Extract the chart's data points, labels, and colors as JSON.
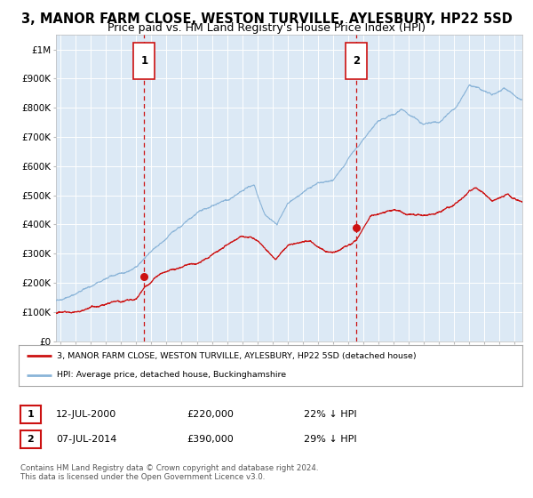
{
  "title": "3, MANOR FARM CLOSE, WESTON TURVILLE, AYLESBURY, HP22 5SD",
  "subtitle": "Price paid vs. HM Land Registry's House Price Index (HPI)",
  "title_fontsize": 10.5,
  "subtitle_fontsize": 9,
  "background_color": "#ffffff",
  "plot_bg_color": "#dce9f5",
  "hpi_color": "#8ab4d8",
  "price_color": "#cc1111",
  "marker_color": "#cc1111",
  "vline_color": "#cc1111",
  "grid_color": "#ffffff",
  "annotation_box_color": "#cc1111",
  "ylim": [
    0,
    1050000
  ],
  "xlim_start": 1994.7,
  "xlim_end": 2025.5,
  "yticks": [
    0,
    100000,
    200000,
    300000,
    400000,
    500000,
    600000,
    700000,
    800000,
    900000,
    1000000
  ],
  "ytick_labels": [
    "£0",
    "£100K",
    "£200K",
    "£300K",
    "£400K",
    "£500K",
    "£600K",
    "£700K",
    "£800K",
    "£900K",
    "£1M"
  ],
  "xtick_years": [
    1995,
    1996,
    1997,
    1998,
    1999,
    2000,
    2001,
    2002,
    2003,
    2004,
    2005,
    2006,
    2007,
    2008,
    2009,
    2010,
    2011,
    2012,
    2013,
    2014,
    2015,
    2016,
    2017,
    2018,
    2019,
    2020,
    2021,
    2022,
    2023,
    2024,
    2025
  ],
  "sale1_x": 2000.53,
  "sale1_y": 220000,
  "sale1_label": "1",
  "sale2_x": 2014.52,
  "sale2_y": 390000,
  "sale2_label": "2",
  "legend_line1": "3, MANOR FARM CLOSE, WESTON TURVILLE, AYLESBURY, HP22 5SD (detached house)",
  "legend_line2": "HPI: Average price, detached house, Buckinghamshire",
  "table_row1": [
    "1",
    "12-JUL-2000",
    "£220,000",
    "22% ↓ HPI"
  ],
  "table_row2": [
    "2",
    "07-JUL-2014",
    "£390,000",
    "29% ↓ HPI"
  ],
  "footer": "Contains HM Land Registry data © Crown copyright and database right 2024.\nThis data is licensed under the Open Government Licence v3.0."
}
